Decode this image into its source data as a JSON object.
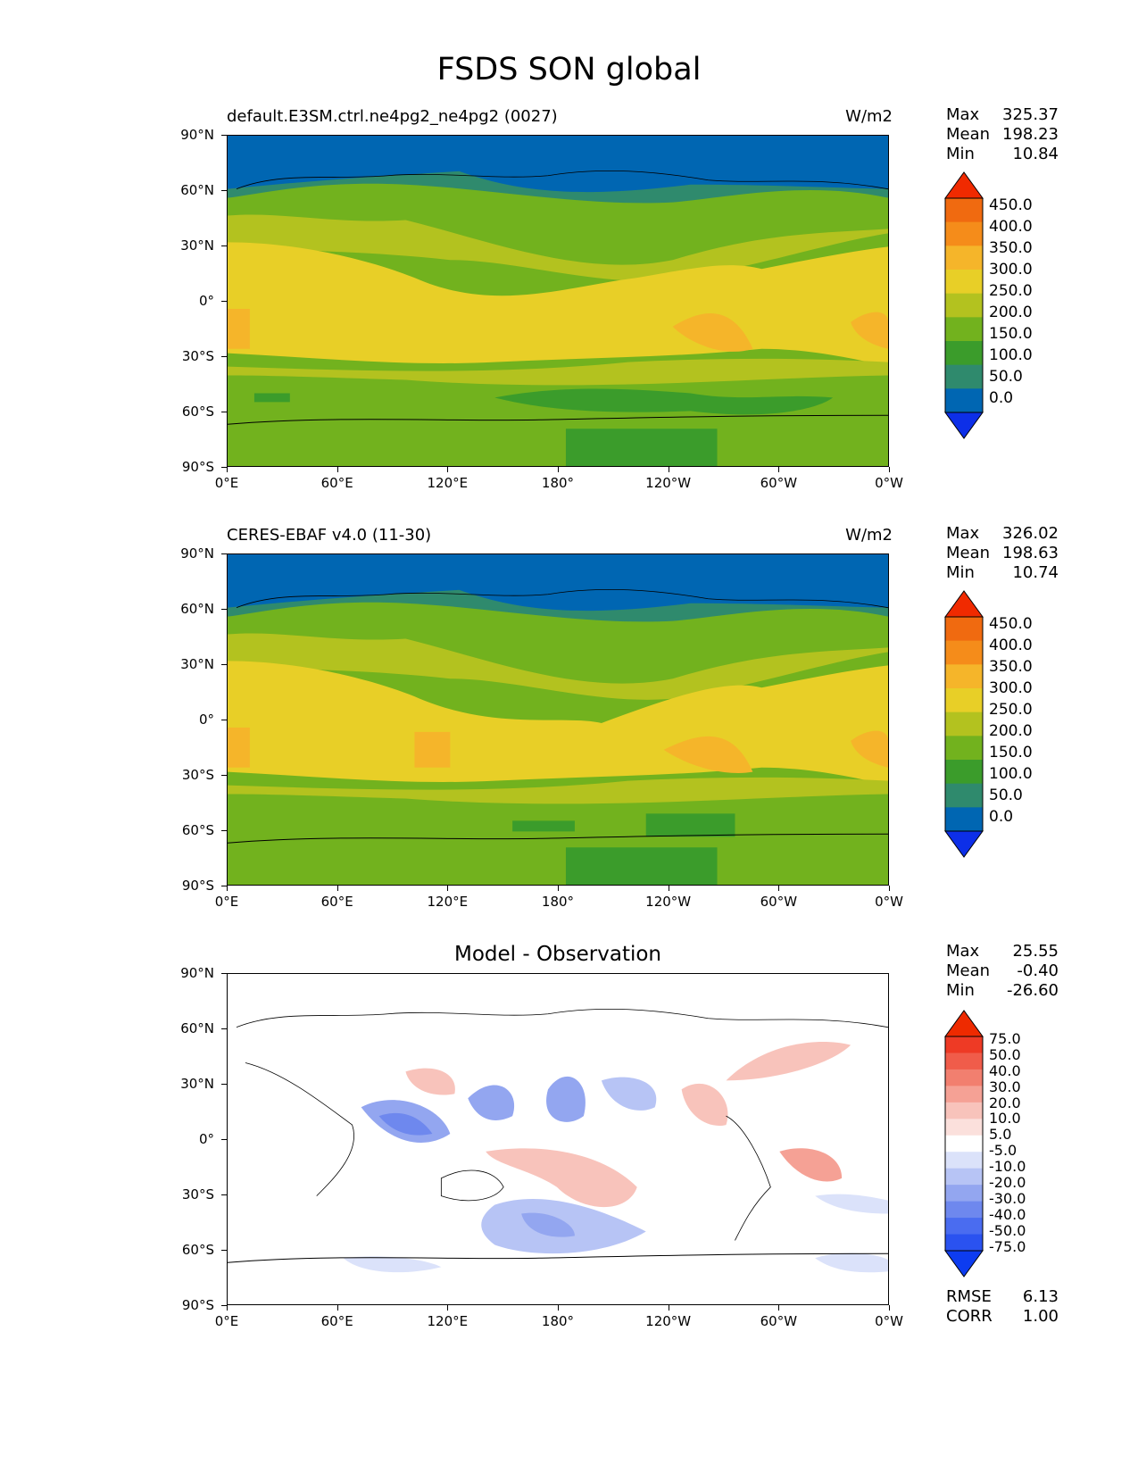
{
  "figure": {
    "title": "FSDS SON global"
  },
  "axes": {
    "lat_labels": [
      "90°N",
      "60°N",
      "30°N",
      "0°",
      "30°S",
      "60°S",
      "90°S"
    ],
    "lon_labels": [
      "0°E",
      "60°E",
      "120°E",
      "180°",
      "120°W",
      "60°W",
      "0°W"
    ]
  },
  "panels": [
    {
      "title_left": "default.E3SM.ctrl.ne4pg2_ne4pg2 (0027)",
      "title_right": "W/m2",
      "stats": [
        [
          "Max",
          "325.37"
        ],
        [
          "Mean",
          "198.23"
        ],
        [
          "Min",
          "10.84"
        ]
      ],
      "colorbar_labels": [
        "450.0",
        "400.0",
        "350.0",
        "300.0",
        "250.0",
        "200.0",
        "150.0",
        "100.0",
        "50.0",
        "0.0"
      ]
    },
    {
      "title_left": "CERES-EBAF v4.0 (11-30)",
      "title_right": "W/m2",
      "stats": [
        [
          "Max",
          "326.02"
        ],
        [
          "Mean",
          "198.63"
        ],
        [
          "Min",
          "10.74"
        ]
      ],
      "colorbar_labels": [
        "450.0",
        "400.0",
        "350.0",
        "300.0",
        "250.0",
        "200.0",
        "150.0",
        "100.0",
        "50.0",
        "0.0"
      ]
    },
    {
      "title_center": "Model - Observation",
      "stats": [
        [
          "Max",
          "25.55"
        ],
        [
          "Mean",
          "-0.40"
        ],
        [
          "Min",
          "-26.60"
        ]
      ],
      "colorbar_labels": [
        "75.0",
        "50.0",
        "40.0",
        "30.0",
        "20.0",
        "10.0",
        "5.0",
        "-5.0",
        "-10.0",
        "-20.0",
        "-30.0",
        "-40.0",
        "-50.0",
        "-75.0"
      ],
      "metrics": [
        [
          "RMSE",
          "6.13"
        ],
        [
          "CORR",
          "1.00"
        ]
      ]
    }
  ],
  "chart_data": [
    {
      "type": "heatmap",
      "title": "default.E3SM.ctrl.ne4pg2_ne4pg2 (0027)",
      "units": "W/m2",
      "xlim": [
        0,
        360
      ],
      "ylim": [
        -90,
        90
      ],
      "levels": [
        0,
        50,
        100,
        150,
        200,
        250,
        300,
        350,
        400,
        450
      ],
      "colors": [
        "#0d2fe8",
        "#0066b2",
        "#2f8a6d",
        "#3b9c2b",
        "#72b21e",
        "#b3c21f",
        "#e8cf27",
        "#f5b52a",
        "#f58c1a",
        "#f06a10",
        "#f02a00"
      ],
      "stats": {
        "max": 325.37,
        "mean": 198.23,
        "min": 10.84
      }
    },
    {
      "type": "heatmap",
      "title": "CERES-EBAF v4.0 (11-30)",
      "units": "W/m2",
      "xlim": [
        0,
        360
      ],
      "ylim": [
        -90,
        90
      ],
      "levels": [
        0,
        50,
        100,
        150,
        200,
        250,
        300,
        350,
        400,
        450
      ],
      "colors": [
        "#0d2fe8",
        "#0066b2",
        "#2f8a6d",
        "#3b9c2b",
        "#72b21e",
        "#b3c21f",
        "#e8cf27",
        "#f5b52a",
        "#f58c1a",
        "#f06a10",
        "#f02a00"
      ],
      "stats": {
        "max": 326.02,
        "mean": 198.63,
        "min": 10.74
      }
    },
    {
      "type": "heatmap",
      "title": "Model - Observation",
      "xlim": [
        0,
        360
      ],
      "ylim": [
        -90,
        90
      ],
      "levels": [
        -75,
        -50,
        -40,
        -30,
        -20,
        -10,
        -5,
        5,
        10,
        20,
        30,
        40,
        50,
        75
      ],
      "colors": [
        "#0d3cf0",
        "#2a52f0",
        "#4a6cf0",
        "#6e88ee",
        "#93a6f0",
        "#b7c4f5",
        "#dbe2fa",
        "#ffffff",
        "#fbe0dc",
        "#f8c3bb",
        "#f5a195",
        "#f27f6f",
        "#f05c4a",
        "#ee3a25",
        "#ee2a00"
      ],
      "stats": {
        "max": 25.55,
        "mean": -0.4,
        "min": -26.6,
        "rmse": 6.13,
        "corr": 1.0
      }
    }
  ]
}
